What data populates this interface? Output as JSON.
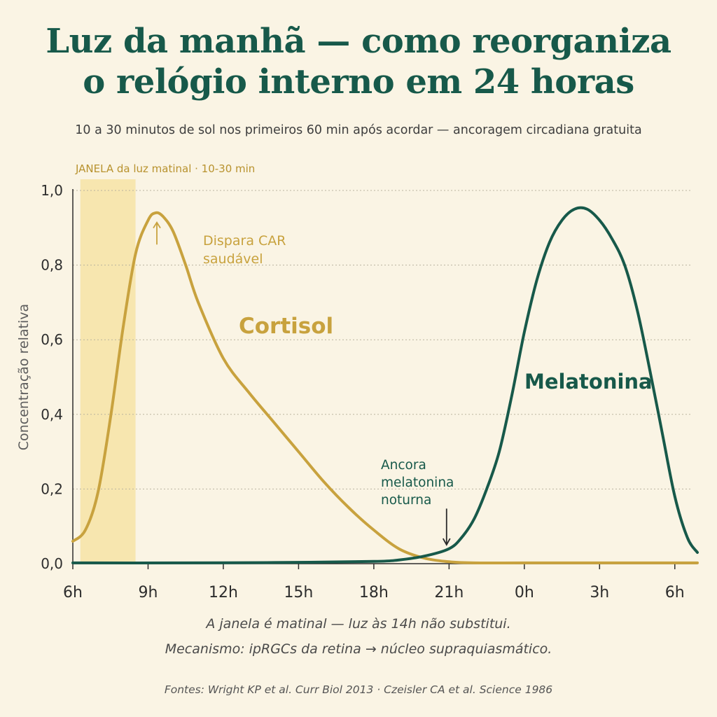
{
  "title_lines": [
    "Luz da manhã — como reorganiza",
    "o relógio interno em 24 horas"
  ],
  "subtitle": "10 a 30 minutos de sol nos primeiros 60 min após acordar — ancoragem circadiana gratuita",
  "colors": {
    "background": "#faf4e4",
    "title": "#17594a",
    "cortisol": "#c8a23e",
    "melatonin": "#17594a",
    "window": "#f6e3a6",
    "window_label": "#b8922e",
    "grid": "#b9b39f",
    "axis": "#2d2d2d"
  },
  "chart_data": {
    "type": "line",
    "xlabel": "",
    "ylabel": "Concentração relativa",
    "xlim": [
      6,
      30.9
    ],
    "ylim": [
      0,
      1
    ],
    "x_ticks": [
      6,
      9,
      12,
      15,
      18,
      21,
      24,
      27,
      30
    ],
    "x_tick_labels": [
      "6h",
      "9h",
      "12h",
      "15h",
      "18h",
      "21h",
      "0h",
      "3h",
      "6h"
    ],
    "y_ticks": [
      0,
      0.2,
      0.4,
      0.6,
      0.8,
      1.0
    ],
    "y_tick_labels": [
      "0,0",
      "0,2",
      "0,4",
      "0,6",
      "0,8",
      "1,0"
    ],
    "grid": "horizontal dotted",
    "highlight_window": {
      "x": [
        6.3,
        8.5
      ],
      "label": "JANELA da luz matinal · 10-30 min"
    },
    "series": [
      {
        "name": "Cortisol",
        "x": [
          6,
          6.5,
          7,
          7.5,
          8,
          8.5,
          9,
          9.3,
          9.6,
          10,
          10.5,
          11,
          12,
          13,
          14,
          15,
          16,
          17,
          18,
          19,
          20,
          21,
          22,
          24,
          27,
          30.9
        ],
        "y": [
          0.06,
          0.09,
          0.19,
          0.39,
          0.63,
          0.83,
          0.92,
          0.94,
          0.93,
          0.89,
          0.8,
          0.7,
          0.55,
          0.46,
          0.38,
          0.3,
          0.22,
          0.15,
          0.09,
          0.04,
          0.015,
          0.005,
          0.002,
          0.002,
          0.002,
          0.002
        ]
      },
      {
        "name": "Melatonina",
        "x": [
          6,
          10,
          14,
          18,
          19,
          20,
          21,
          21.5,
          22,
          22.5,
          23,
          23.5,
          24,
          24.5,
          25,
          25.5,
          26,
          26.5,
          27,
          27.5,
          28,
          28.5,
          29,
          29.5,
          30,
          30.5,
          30.9
        ],
        "y": [
          0.002,
          0.002,
          0.003,
          0.006,
          0.01,
          0.02,
          0.04,
          0.07,
          0.12,
          0.2,
          0.3,
          0.45,
          0.62,
          0.76,
          0.86,
          0.92,
          0.95,
          0.95,
          0.92,
          0.87,
          0.8,
          0.68,
          0.52,
          0.35,
          0.18,
          0.07,
          0.03
        ]
      }
    ],
    "series_labels": [
      "Cortisol",
      "Melatonina"
    ],
    "annotations": [
      {
        "text_lines": [
          "Dispara CAR",
          "saudável"
        ],
        "arrow_x": 9.35,
        "arrow_y": [
          0.84,
          0.92
        ],
        "arrow_dir": "up",
        "series": "Cortisol"
      },
      {
        "text_lines": [
          "Ancora",
          "melatonina",
          "noturna"
        ],
        "arrow_x": 20.9,
        "arrow_y": [
          0.17,
          0.06
        ],
        "arrow_dir": "down",
        "series": "Melatonina"
      }
    ]
  },
  "footnotes": [
    "A janela é matinal — luz às 14h não substitui.",
    "Mecanismo: ipRGCs da retina → núcleo supraquiasmático."
  ],
  "sources": "Fontes: Wright KP et al. Curr Biol 2013 · Czeisler CA et al. Science 1986"
}
